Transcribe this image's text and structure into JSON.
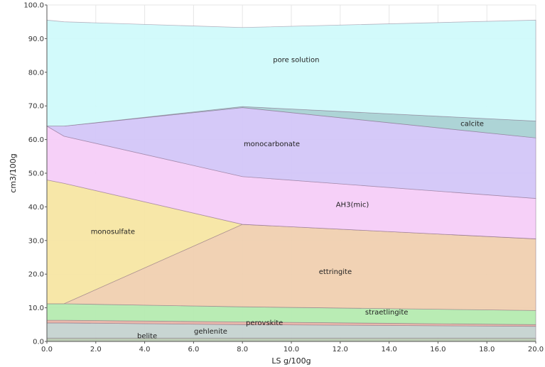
{
  "chart_data": {
    "type": "area",
    "xlabel": "LS g/100g",
    "ylabel": "cm3/100g",
    "xlim": [
      0,
      20
    ],
    "ylim": [
      0,
      100
    ],
    "x_ticks": [
      "0.0",
      "2.0",
      "4.0",
      "6.0",
      "8.0",
      "10.0",
      "12.0",
      "14.0",
      "16.0",
      "18.0",
      "20.0"
    ],
    "y_ticks": [
      "0.0",
      "10.0",
      "20.0",
      "30.0",
      "40.0",
      "50.0",
      "60.0",
      "70.0",
      "80.0",
      "90.0",
      "100.0"
    ],
    "grid": true,
    "x": [
      0,
      0.7,
      8,
      20
    ],
    "series": [
      {
        "name": "belite",
        "color": "#b8c8b0",
        "bounds": [
          [
            0,
            0,
            0,
            0
          ],
          [
            1.0,
            1.0,
            1.0,
            1.0
          ]
        ]
      },
      {
        "name": "gehlenite",
        "color": "#c5d3d0",
        "bounds": [
          [
            1.0,
            1.0,
            1.0,
            1.0
          ],
          [
            5.5,
            5.5,
            5.0,
            4.5
          ]
        ]
      },
      {
        "name": "perovskite",
        "color": "#e8b4a8",
        "bounds": [
          [
            5.5,
            5.5,
            5.0,
            4.5
          ],
          [
            6.3,
            6.3,
            5.8,
            5.0
          ]
        ]
      },
      {
        "name": "straetlingite",
        "color": "#b5ebb0",
        "bounds": [
          [
            6.3,
            6.3,
            5.8,
            5.0
          ],
          [
            11.2,
            11.2,
            10.3,
            9.2
          ]
        ]
      },
      {
        "name": "ettringite",
        "color": "#f0d0b0",
        "bounds": [
          [
            11.2,
            11.2,
            34.8,
            30.5
          ],
          [
            11.2,
            11.2,
            34.8,
            30.5
          ]
        ],
        "lower": [
          11.2,
          11.2,
          10.3,
          9.2
        ],
        "upper": [
          11.2,
          11.2,
          34.8,
          30.5
        ]
      },
      {
        "name": "monosulfate",
        "color": "#f7e6a3",
        "lower": [
          11.2,
          11.2,
          34.8,
          30.5
        ],
        "upper": [
          48.0,
          47.0,
          34.8,
          30.5
        ]
      },
      {
        "name": "AH3(mic)",
        "color": "#f6cef8",
        "lower": [
          48.0,
          47.0,
          34.8,
          30.5
        ],
        "upper": [
          64.0,
          61.0,
          49.0,
          42.5
        ]
      },
      {
        "name": "monocarbonate",
        "color": "#d3c6f8",
        "lower": [
          64.0,
          61.0,
          49.0,
          42.5
        ],
        "upper": [
          64.0,
          64.0,
          69.5,
          60.5
        ]
      },
      {
        "name": "calcite",
        "color": "#a9d2d4",
        "lower": [
          64.0,
          64.0,
          69.5,
          60.5
        ],
        "upper": [
          64.0,
          64.0,
          69.8,
          65.5
        ]
      },
      {
        "name": "pore solution",
        "color": "#d0fafb",
        "lower": [
          64.0,
          64.0,
          69.8,
          65.5
        ],
        "upper": [
          95.5,
          95.0,
          93.3,
          95.5
        ]
      }
    ],
    "labels": [
      {
        "text": "pore solution",
        "x": 10.2,
        "y": 83
      },
      {
        "text": "calcite",
        "x": 17.4,
        "y": 64
      },
      {
        "text": "monocarbonate",
        "x": 9.2,
        "y": 58
      },
      {
        "text": "AH3(mic)",
        "x": 12.5,
        "y": 40
      },
      {
        "text": "monosulfate",
        "x": 2.7,
        "y": 32
      },
      {
        "text": "ettringite",
        "x": 11.8,
        "y": 20
      },
      {
        "text": "straetlingite",
        "x": 13.9,
        "y": 8
      },
      {
        "text": "perovskite",
        "x": 8.9,
        "y": 4.8
      },
      {
        "text": "gehlenite",
        "x": 6.7,
        "y": 2.3
      },
      {
        "text": "belite",
        "x": 4.1,
        "y": 1
      }
    ]
  }
}
